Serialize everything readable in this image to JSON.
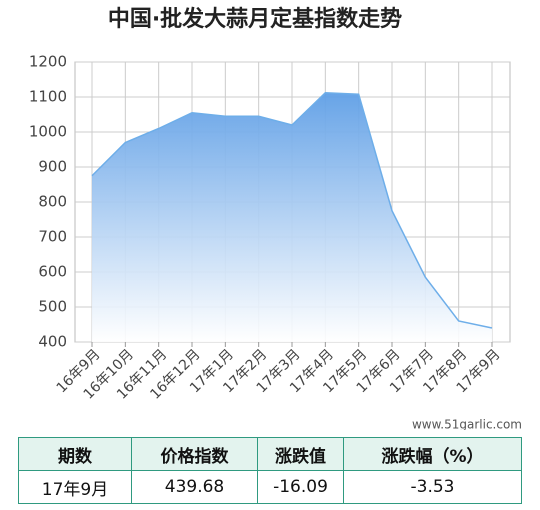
{
  "chart_data": {
    "type": "area",
    "title": "中国·批发大蒜月定基指数走势",
    "categories": [
      "16年9月",
      "16年10月",
      "16年11月",
      "16年12月",
      "17年1月",
      "17年2月",
      "17年3月",
      "17年4月",
      "17年5月",
      "17年6月",
      "17年7月",
      "17年8月",
      "17年9月"
    ],
    "values": [
      875,
      970,
      1010,
      1055,
      1045,
      1045,
      1020,
      1112,
      1108,
      775,
      585,
      460,
      440
    ],
    "color": "#6eaee9",
    "ylim": [
      400,
      1200
    ],
    "yticks": [
      400,
      500,
      600,
      700,
      800,
      900,
      1000,
      1100,
      1200
    ],
    "grid": true,
    "watermark": "www.51garlic.com"
  },
  "table": {
    "header": [
      "期数",
      "价格指数",
      "涨跌值",
      "涨跌幅（%）"
    ],
    "rows": [
      [
        "17年9月",
        "439.68",
        "-16.09",
        "-3.53"
      ]
    ]
  }
}
